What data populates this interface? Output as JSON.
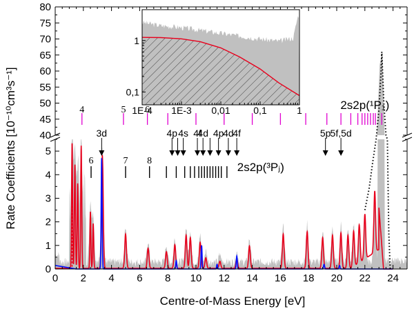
{
  "chart_data": {
    "type": "line",
    "xlabel": "Centre-of-Mass Energy [eV]",
    "ylabel": "Rate Coefficients [10⁻¹⁰cm³s⁻¹]",
    "xlim": [
      0,
      25
    ],
    "x_ticks": [
      0,
      2,
      4,
      6,
      8,
      10,
      12,
      14,
      16,
      18,
      20,
      22,
      24
    ],
    "ylim_lower": [
      0,
      5.5
    ],
    "ylim_upper": [
      40,
      80
    ],
    "y_ticks_lower": [
      0,
      1,
      2,
      3,
      4,
      5
    ],
    "y_ticks_upper": [
      40,
      45,
      50,
      55,
      60,
      65,
      70,
      75,
      80
    ],
    "axis_break_between": [
      5.5,
      40
    ],
    "series": [
      {
        "name": "experiment",
        "style": "grey-filled",
        "color": "#c0c0c0"
      },
      {
        "name": "theory-total",
        "style": "solid",
        "color": "#e8001c"
      },
      {
        "name": "theory-3P",
        "style": "solid",
        "color": "#0010ff"
      },
      {
        "name": "radiative-recombination",
        "style": "dotted",
        "color": "#000000"
      }
    ],
    "peaks": [
      {
        "x": 1.2,
        "y": 5.3
      },
      {
        "x": 1.4,
        "y": 4.4
      },
      {
        "x": 1.6,
        "y": 3.6
      },
      {
        "x": 1.85,
        "y": 5.2
      },
      {
        "x": 2.5,
        "y": 2.4
      },
      {
        "x": 2.7,
        "y": 1.9
      },
      {
        "x": 3.35,
        "y": 4.8
      },
      {
        "x": 5.0,
        "y": 1.45
      },
      {
        "x": 6.6,
        "y": 0.85
      },
      {
        "x": 7.9,
        "y": 0.7
      },
      {
        "x": 8.5,
        "y": 1.0
      },
      {
        "x": 9.3,
        "y": 1.4
      },
      {
        "x": 9.6,
        "y": 1.3
      },
      {
        "x": 10.3,
        "y": 1.1
      },
      {
        "x": 10.7,
        "y": 0.45
      },
      {
        "x": 11.7,
        "y": 0.3
      },
      {
        "x": 12.9,
        "y": 0.4
      },
      {
        "x": 13.8,
        "y": 0.95
      },
      {
        "x": 16.2,
        "y": 1.45
      },
      {
        "x": 17.9,
        "y": 1.55
      },
      {
        "x": 19.0,
        "y": 1.3
      },
      {
        "x": 19.7,
        "y": 1.4
      },
      {
        "x": 20.3,
        "y": 1.5
      },
      {
        "x": 20.8,
        "y": 1.4
      },
      {
        "x": 21.2,
        "y": 1.5
      },
      {
        "x": 21.6,
        "y": 1.6
      },
      {
        "x": 22.0,
        "y": 1.9
      },
      {
        "x": 22.7,
        "y": 2.6
      }
    ],
    "blue_peaks": [
      {
        "x": 3.3,
        "y": 4.7
      },
      {
        "x": 8.6,
        "y": 0.35
      },
      {
        "x": 10.4,
        "y": 1.0
      },
      {
        "x": 11.5,
        "y": 0.2
      },
      {
        "x": 12.9,
        "y": 0.55
      },
      {
        "x": 19.1,
        "y": 0.2
      },
      {
        "x": 20.2,
        "y": 0.15
      }
    ],
    "rr_dotted": [
      {
        "x": 22.0,
        "y": 2.5
      },
      {
        "x": 22.3,
        "y": 3.4
      },
      {
        "x": 22.55,
        "y": 4.5
      },
      {
        "x": 22.8,
        "y": 5.5
      },
      {
        "x": 23.0,
        "y": 48
      },
      {
        "x": 23.15,
        "y": 60
      },
      {
        "x": 23.2,
        "y": 66
      },
      {
        "x": 23.35,
        "y": 50
      },
      {
        "x": 23.5,
        "y": 40
      },
      {
        "x": 23.6,
        "y": 5.5
      },
      {
        "x": 23.7,
        "y": 1.5
      },
      {
        "x": 23.8,
        "y": 0
      }
    ],
    "annotations": {
      "series_1P": {
        "label": "2s2p(¹P₁)",
        "color": "#e000d0",
        "ticks": [
          1.9,
          4.85,
          6.55,
          8.0,
          10.0,
          12.0,
          14.0,
          16.0,
          17.8,
          19.3,
          20.3,
          21.0,
          21.5,
          21.8,
          22.0,
          22.2,
          22.4,
          22.6,
          22.75,
          23.2
        ]
      },
      "series_1P_labels": [
        {
          "text": "4",
          "x": 1.9
        },
        {
          "text": "5",
          "x": 4.85
        },
        {
          "text": "6",
          "x": 6.55
        }
      ],
      "series_3P": {
        "label": "2s2p(³Pⱼ)",
        "ticks": [
          2.55,
          5.0,
          6.7,
          7.9,
          8.6,
          9.2,
          9.6,
          9.9,
          10.2,
          10.4,
          10.6,
          10.8,
          11.0,
          11.2,
          11.4,
          11.6,
          11.8,
          12.2
        ]
      },
      "series_3P_labels": [
        {
          "text": "6",
          "x": 2.55
        },
        {
          "text": "7",
          "x": 5.0
        },
        {
          "text": "8",
          "x": 6.7
        }
      ],
      "arrows": [
        {
          "label": "3d",
          "x": 3.3
        },
        {
          "label": "4p",
          "x": 8.3
        },
        {
          "label": "",
          "x": 8.7
        },
        {
          "label": "4s",
          "x": 9.1
        },
        {
          "label": "4f",
          "x": 10.1
        },
        {
          "label": "4d",
          "x": 10.5
        },
        {
          "label": "",
          "x": 11.0
        },
        {
          "label": "4p",
          "x": 11.6
        },
        {
          "label": "4d",
          "x": 12.3
        },
        {
          "label": "4f",
          "x": 12.9
        },
        {
          "label": "5p",
          "x": 19.2
        },
        {
          "label": "5f,5d",
          "x": 20.3
        }
      ]
    },
    "inset": {
      "type": "line",
      "scale": "log-log",
      "x_ticks": [
        "1E-4",
        "1E-3",
        "0,01",
        "0,1",
        "1"
      ],
      "y_ticks": [
        "1",
        "0,1"
      ],
      "x_decades": [
        -4,
        0
      ],
      "y_decades": [
        -1.25,
        0.6
      ],
      "red_curve": [
        {
          "x": 0.0001,
          "y": 1.15
        },
        {
          "x": 0.0003,
          "y": 1.14
        },
        {
          "x": 0.001,
          "y": 1.08
        },
        {
          "x": 0.003,
          "y": 0.95
        },
        {
          "x": 0.01,
          "y": 0.72
        },
        {
          "x": 0.03,
          "y": 0.48
        },
        {
          "x": 0.1,
          "y": 0.28
        },
        {
          "x": 0.3,
          "y": 0.15
        },
        {
          "x": 1.0,
          "y": 0.085
        }
      ],
      "grey_upper": [
        {
          "x": 0.0001,
          "y": 2.2
        },
        {
          "x": 0.0003,
          "y": 1.9
        },
        {
          "x": 0.001,
          "y": 1.75
        },
        {
          "x": 0.003,
          "y": 1.55
        },
        {
          "x": 0.01,
          "y": 1.35
        },
        {
          "x": 0.03,
          "y": 1.2
        },
        {
          "x": 0.1,
          "y": 1.05
        },
        {
          "x": 0.3,
          "y": 0.95
        },
        {
          "x": 0.7,
          "y": 1.1
        },
        {
          "x": 0.9,
          "y": 2.8
        },
        {
          "x": 1.0,
          "y": 3.2
        }
      ]
    },
    "colors": {
      "experiment": "#c0c0c0",
      "theory": "#e8001c",
      "blue": "#0010ff",
      "magenta": "#e000d0"
    }
  }
}
